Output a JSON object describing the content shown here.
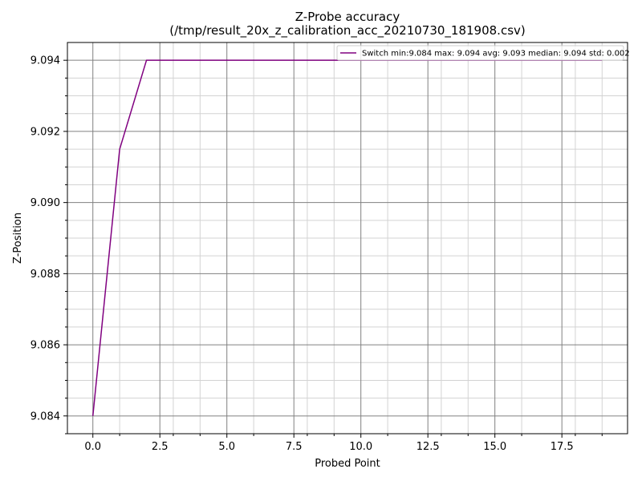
{
  "chart_data": {
    "type": "line",
    "title": "Z-Probe accuracy",
    "subtitle": "(/tmp/result_20x_z_calibration_acc_20210730_181908.csv)",
    "xlabel": "Probed Point",
    "ylabel": "Z-Position",
    "xlim": [
      -0.95,
      19.95
    ],
    "ylim": [
      9.0835,
      9.0945
    ],
    "x_ticks": [
      0.0,
      2.5,
      5.0,
      7.5,
      10.0,
      12.5,
      15.0,
      17.5
    ],
    "x_tick_labels": [
      "0.0",
      "2.5",
      "5.0",
      "7.5",
      "10.0",
      "12.5",
      "15.0",
      "17.5"
    ],
    "x_minor_ticks": [
      1,
      3,
      4,
      6,
      8,
      9,
      11,
      13,
      14,
      16,
      18,
      19
    ],
    "y_ticks": [
      9.084,
      9.086,
      9.088,
      9.09,
      9.092,
      9.094
    ],
    "y_tick_labels": [
      "9.084",
      "9.086",
      "9.088",
      "9.090",
      "9.092",
      "9.094"
    ],
    "y_minor_ticks": [
      9.0835,
      9.0845,
      9.085,
      9.0855,
      9.0865,
      9.087,
      9.0875,
      9.0885,
      9.089,
      9.0895,
      9.0905,
      9.091,
      9.0915,
      9.0925,
      9.093,
      9.0935
    ],
    "grid": true,
    "legend_position": "top-right",
    "series": [
      {
        "name": "Switch min:9.084 max: 9.094 avg: 9.093 median: 9.094 std: 0.002",
        "color": "#800080",
        "x": [
          0,
          1,
          2,
          3,
          4,
          5,
          6,
          7,
          8,
          9,
          10,
          11,
          12,
          13,
          14,
          15,
          16,
          17,
          18,
          19
        ],
        "y": [
          9.084,
          9.0915,
          9.094,
          9.094,
          9.094,
          9.094,
          9.094,
          9.094,
          9.094,
          9.094,
          9.094,
          9.094,
          9.094,
          9.094,
          9.094,
          9.094,
          9.094,
          9.094,
          9.094,
          9.094
        ]
      }
    ],
    "colors": {
      "major_grid": "#808080",
      "minor_grid": "#d3d3d3"
    }
  }
}
